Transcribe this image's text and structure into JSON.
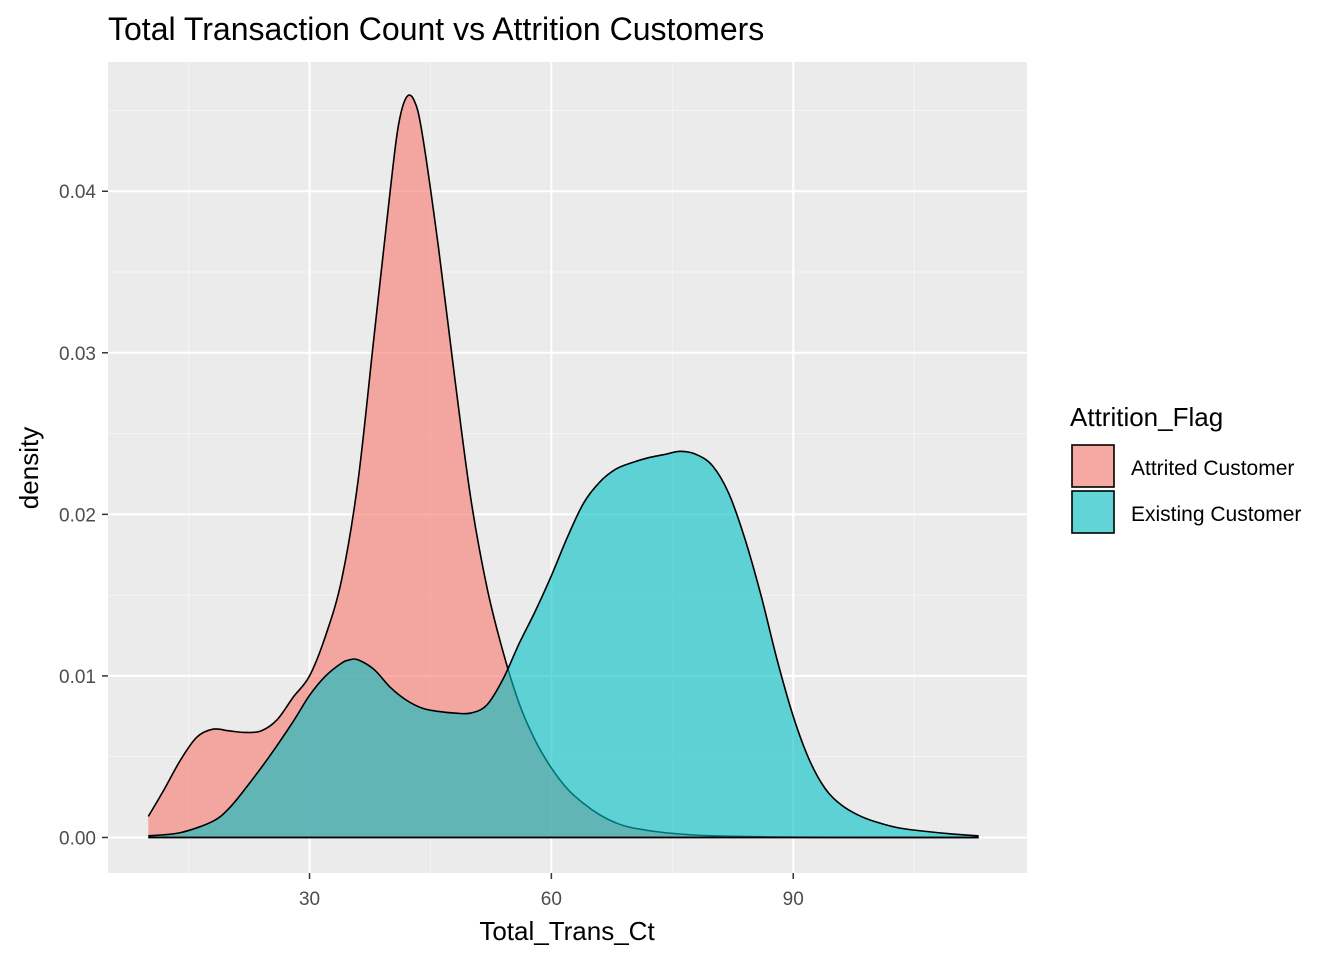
{
  "chart_data": {
    "type": "area",
    "title": "Total Transaction Count vs Attrition Customers",
    "xlabel": "Total_Trans_Ct",
    "ylabel": "density",
    "xlim": [
      5,
      119
    ],
    "ylim": [
      -0.0022,
      0.048
    ],
    "x_ticks": [
      30,
      60,
      90
    ],
    "x_tick_labels": [
      "30",
      "60",
      "90"
    ],
    "y_ticks": [
      0.0,
      0.01,
      0.02,
      0.03,
      0.04
    ],
    "y_tick_labels": [
      "0.00",
      "0.01",
      "0.02",
      "0.03",
      "0.04"
    ],
    "grid": true,
    "legend": {
      "title": "Attrition_Flag",
      "position": "right"
    },
    "series": [
      {
        "name": "Attrited Customer",
        "color": "#F8766D",
        "points": [
          [
            10,
            0.0013
          ],
          [
            12,
            0.003
          ],
          [
            14,
            0.0048
          ],
          [
            16,
            0.0062
          ],
          [
            18,
            0.0067
          ],
          [
            20,
            0.0066
          ],
          [
            22,
            0.0065
          ],
          [
            24,
            0.0066
          ],
          [
            26,
            0.0073
          ],
          [
            28,
            0.0087
          ],
          [
            30,
            0.01
          ],
          [
            32,
            0.0125
          ],
          [
            34,
            0.016
          ],
          [
            36,
            0.022
          ],
          [
            38,
            0.031
          ],
          [
            40,
            0.04
          ],
          [
            41,
            0.044
          ],
          [
            42,
            0.0458
          ],
          [
            43,
            0.0456
          ],
          [
            44,
            0.0435
          ],
          [
            46,
            0.0365
          ],
          [
            48,
            0.0285
          ],
          [
            50,
            0.021
          ],
          [
            52,
            0.0155
          ],
          [
            54,
            0.0115
          ],
          [
            56,
            0.0083
          ],
          [
            58,
            0.006
          ],
          [
            60,
            0.0043
          ],
          [
            62,
            0.003
          ],
          [
            64,
            0.0021
          ],
          [
            66,
            0.0014
          ],
          [
            68,
            0.0009
          ],
          [
            70,
            0.0006
          ],
          [
            74,
            0.0003
          ],
          [
            80,
            0.0001
          ],
          [
            90,
            2e-05
          ],
          [
            100,
            0.0
          ],
          [
            113,
            0.0
          ]
        ]
      },
      {
        "name": "Existing Customer",
        "color": "#00BFC4",
        "points": [
          [
            10,
            0.0001
          ],
          [
            14,
            0.0003
          ],
          [
            18,
            0.001
          ],
          [
            20,
            0.0018
          ],
          [
            22,
            0.003
          ],
          [
            25,
            0.005
          ],
          [
            28,
            0.0072
          ],
          [
            30,
            0.0088
          ],
          [
            32,
            0.01
          ],
          [
            34,
            0.0108
          ],
          [
            35,
            0.011
          ],
          [
            36,
            0.011
          ],
          [
            38,
            0.0104
          ],
          [
            40,
            0.0093
          ],
          [
            42,
            0.0085
          ],
          [
            44,
            0.008
          ],
          [
            46,
            0.0078
          ],
          [
            48,
            0.0077
          ],
          [
            50,
            0.0077
          ],
          [
            52,
            0.0082
          ],
          [
            54,
            0.0098
          ],
          [
            56,
            0.012
          ],
          [
            58,
            0.014
          ],
          [
            60,
            0.0162
          ],
          [
            62,
            0.0186
          ],
          [
            64,
            0.0207
          ],
          [
            66,
            0.022
          ],
          [
            68,
            0.0228
          ],
          [
            70,
            0.0232
          ],
          [
            72,
            0.0235
          ],
          [
            74,
            0.0237
          ],
          [
            76,
            0.0239
          ],
          [
            78,
            0.0237
          ],
          [
            80,
            0.023
          ],
          [
            82,
            0.0213
          ],
          [
            84,
            0.0185
          ],
          [
            86,
            0.015
          ],
          [
            88,
            0.011
          ],
          [
            90,
            0.0075
          ],
          [
            92,
            0.0048
          ],
          [
            94,
            0.003
          ],
          [
            96,
            0.002
          ],
          [
            98,
            0.0014
          ],
          [
            100,
            0.001
          ],
          [
            103,
            0.0006
          ],
          [
            106,
            0.0004
          ],
          [
            110,
            0.0002
          ],
          [
            113,
            0.0001
          ]
        ]
      },
      {
        "name": "Attrited Customer",
        "color": "#F8766D",
        "points": [
          [
            10,
            0.0013
          ],
          [
            12,
            0.003
          ],
          [
            14,
            0.0048
          ],
          [
            16,
            0.0062
          ],
          [
            18,
            0.0067
          ]
        ]
      }
    ]
  }
}
